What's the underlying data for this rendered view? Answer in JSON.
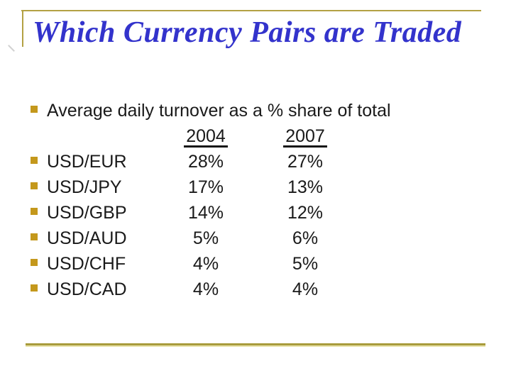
{
  "slide": {
    "title": "Which Currency Pairs are Traded",
    "intro": "Average daily turnover as a % share of total",
    "table": {
      "col_headers": [
        "2004",
        "2007"
      ],
      "rows": [
        {
          "pair": "USD/EUR",
          "y2004": "28%",
          "y2007": "27%"
        },
        {
          "pair": "USD/JPY",
          "y2004": "17%",
          "y2007": "13%"
        },
        {
          "pair": "USD/GBP",
          "y2004": "14%",
          "y2007": "12%"
        },
        {
          "pair": "USD/AUD",
          "y2004": "5%",
          "y2007": "6%"
        },
        {
          "pair": "USD/CHF",
          "y2004": "4%",
          "y2007": "5%"
        },
        {
          "pair": "USD/CAD",
          "y2004": "4%",
          "y2007": "4%"
        }
      ]
    },
    "colors": {
      "title_blue": "#3333CC",
      "bullet_gold": "#C4981C",
      "rule_gold": "#B3A143",
      "rule_gold_light": "#E8E2A8",
      "body_text": "#1A1A1A"
    }
  }
}
